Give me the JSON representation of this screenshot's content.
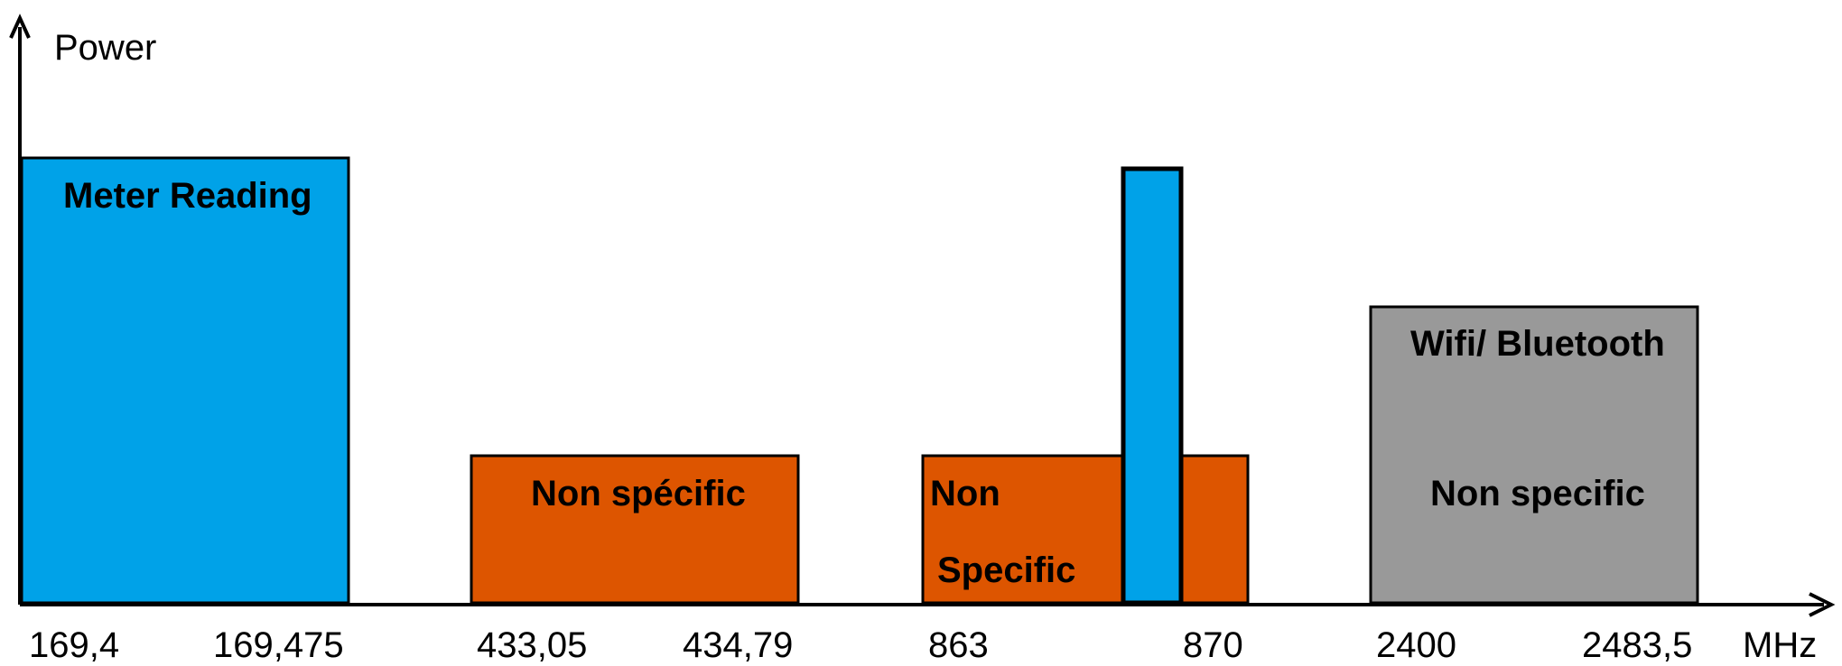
{
  "y_axis_label": "Power",
  "x_axis_unit": "MHz",
  "colors": {
    "meter_reading": "#00A2E8",
    "non_specific": "#DD5500",
    "wifi_bluetooth": "#999999"
  },
  "bands": [
    {
      "id": "meter-reading",
      "labels": [
        "Meter Reading"
      ],
      "color": "#00A2E8",
      "from": "169,4",
      "to": "169,475"
    },
    {
      "id": "non-specific-433",
      "labels": [
        "Non spécific"
      ],
      "color": "#DD5500",
      "from": "433,05",
      "to": "434,79"
    },
    {
      "id": "non-specific-863",
      "labels": [
        "Non",
        "Specific"
      ],
      "color": "#DD5500",
      "from": "863",
      "to": "870"
    },
    {
      "id": "meter-reading-868",
      "labels": [],
      "color": "#00A2E8"
    },
    {
      "id": "wifi-bluetooth",
      "labels": [
        "Wifi/ Bluetooth",
        "Non specific"
      ],
      "color": "#999999",
      "from": "2400",
      "to": "2483,5"
    }
  ],
  "x_ticks": [
    "169,4",
    "169,475",
    "433,05",
    "434,79",
    "863",
    "870",
    "2400",
    "2483,5"
  ]
}
